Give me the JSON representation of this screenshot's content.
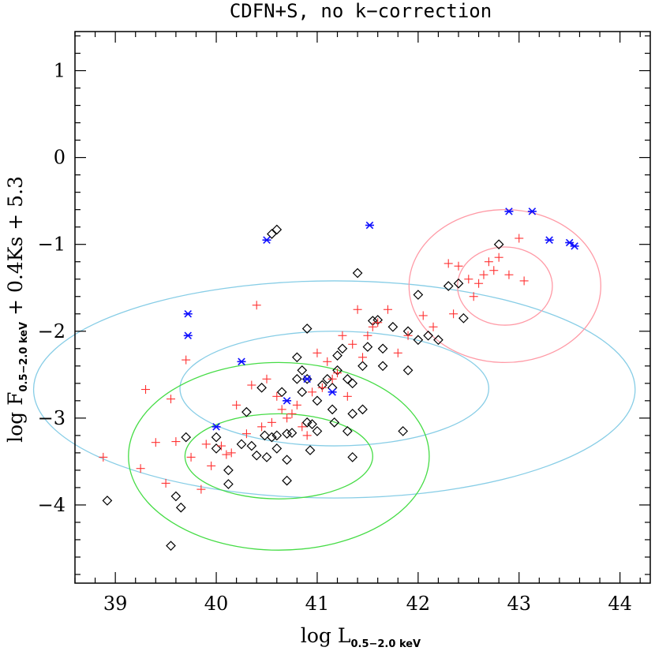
{
  "chart_data": {
    "type": "scatter",
    "title": "CDFN+S, no k−correction",
    "xlabel": {
      "main": "log L",
      "sub": "0.5−2.0 keV"
    },
    "ylabel": {
      "main": "log F",
      "sub": "0.5−2.0 keV",
      "tail": "+ 0.4Ks + 5.3"
    },
    "xlim": [
      38.6,
      44.3
    ],
    "ylim": [
      -4.9,
      1.45
    ],
    "xticks": [
      39,
      40,
      41,
      42,
      43,
      44
    ],
    "yticks": [
      -4,
      -3,
      -2,
      -1,
      0,
      1
    ],
    "ytick_labels": [
      "−4",
      "−3",
      "−2",
      "−1",
      "0",
      "1"
    ],
    "colors": {
      "plus": "#ff3030",
      "diamond": "#000000",
      "star": "#1010ff",
      "ellipse_blue": "#87cde6",
      "ellipse_green": "#46dc46",
      "ellipse_pink": "#ff9aa6"
    },
    "series": [
      {
        "name": "black-diamonds",
        "marker": "diamond",
        "color": "#000000",
        "points": [
          [
            38.92,
            -3.95
          ],
          [
            39.55,
            -4.47
          ],
          [
            39.6,
            -3.9
          ],
          [
            39.65,
            -4.03
          ],
          [
            39.7,
            -3.22
          ],
          [
            40.0,
            -3.22
          ],
          [
            40.0,
            -3.35
          ],
          [
            40.12,
            -3.6
          ],
          [
            40.12,
            -3.76
          ],
          [
            40.25,
            -3.3
          ],
          [
            40.3,
            -2.93
          ],
          [
            40.35,
            -3.32
          ],
          [
            40.4,
            -3.43
          ],
          [
            40.45,
            -2.65
          ],
          [
            40.48,
            -3.2
          ],
          [
            40.5,
            -3.45
          ],
          [
            40.55,
            -3.22
          ],
          [
            40.55,
            -0.88
          ],
          [
            40.6,
            -0.83
          ],
          [
            40.6,
            -3.2
          ],
          [
            40.6,
            -3.35
          ],
          [
            40.65,
            -2.7
          ],
          [
            40.7,
            -3.18
          ],
          [
            40.7,
            -3.48
          ],
          [
            40.7,
            -3.72
          ],
          [
            40.75,
            -3.17
          ],
          [
            40.8,
            -2.55
          ],
          [
            40.8,
            -2.3
          ],
          [
            40.85,
            -2.45
          ],
          [
            40.85,
            -2.7
          ],
          [
            40.9,
            -1.97
          ],
          [
            40.9,
            -2.55
          ],
          [
            40.9,
            -3.05
          ],
          [
            40.93,
            -3.37
          ],
          [
            40.95,
            -3.07
          ],
          [
            41.0,
            -2.8
          ],
          [
            41.0,
            -3.15
          ],
          [
            41.05,
            -2.62
          ],
          [
            41.1,
            -2.55
          ],
          [
            41.15,
            -2.65
          ],
          [
            41.15,
            -2.9
          ],
          [
            41.17,
            -3.05
          ],
          [
            41.2,
            -2.28
          ],
          [
            41.2,
            -2.45
          ],
          [
            41.25,
            -2.2
          ],
          [
            41.3,
            -2.55
          ],
          [
            41.3,
            -3.15
          ],
          [
            41.35,
            -2.6
          ],
          [
            41.35,
            -2.95
          ],
          [
            41.35,
            -3.45
          ],
          [
            41.4,
            -1.33
          ],
          [
            41.45,
            -2.4
          ],
          [
            41.45,
            -2.9
          ],
          [
            41.5,
            -2.18
          ],
          [
            41.55,
            -1.88
          ],
          [
            41.6,
            -1.87
          ],
          [
            41.65,
            -2.2
          ],
          [
            41.65,
            -2.4
          ],
          [
            41.75,
            -1.95
          ],
          [
            41.85,
            -3.15
          ],
          [
            41.9,
            -2.45
          ],
          [
            41.9,
            -2.0
          ],
          [
            42.0,
            -1.58
          ],
          [
            42.0,
            -2.1
          ],
          [
            42.1,
            -2.05
          ],
          [
            42.2,
            -2.1
          ],
          [
            42.3,
            -1.48
          ],
          [
            42.4,
            -1.45
          ],
          [
            42.45,
            -1.85
          ],
          [
            42.8,
            -1.0
          ]
        ]
      },
      {
        "name": "red-plus",
        "marker": "plus",
        "color": "#ff3030",
        "points": [
          [
            38.88,
            -3.45
          ],
          [
            39.25,
            -3.58
          ],
          [
            39.3,
            -2.67
          ],
          [
            39.4,
            -3.28
          ],
          [
            39.5,
            -3.75
          ],
          [
            39.55,
            -2.78
          ],
          [
            39.6,
            -3.27
          ],
          [
            39.7,
            -2.33
          ],
          [
            39.75,
            -3.45
          ],
          [
            39.85,
            -3.82
          ],
          [
            39.9,
            -3.3
          ],
          [
            39.95,
            -3.55
          ],
          [
            40.05,
            -3.32
          ],
          [
            40.1,
            -3.42
          ],
          [
            40.15,
            -3.4
          ],
          [
            40.2,
            -2.85
          ],
          [
            40.3,
            -3.18
          ],
          [
            40.35,
            -2.62
          ],
          [
            40.4,
            -1.7
          ],
          [
            40.45,
            -3.1
          ],
          [
            40.5,
            -2.55
          ],
          [
            40.55,
            -3.05
          ],
          [
            40.6,
            -2.75
          ],
          [
            40.65,
            -2.9
          ],
          [
            40.7,
            -3.0
          ],
          [
            40.75,
            -2.95
          ],
          [
            40.8,
            -2.85
          ],
          [
            40.85,
            -3.1
          ],
          [
            40.9,
            -3.2
          ],
          [
            40.95,
            -2.7
          ],
          [
            41.0,
            -2.25
          ],
          [
            41.05,
            -2.65
          ],
          [
            41.1,
            -2.35
          ],
          [
            41.15,
            -2.55
          ],
          [
            41.2,
            -2.48
          ],
          [
            41.25,
            -2.05
          ],
          [
            41.3,
            -2.75
          ],
          [
            41.35,
            -2.15
          ],
          [
            41.4,
            -1.75
          ],
          [
            41.45,
            -2.3
          ],
          [
            41.5,
            -2.05
          ],
          [
            41.55,
            -1.95
          ],
          [
            41.6,
            -1.9
          ],
          [
            41.7,
            -1.75
          ],
          [
            41.8,
            -2.25
          ],
          [
            41.9,
            -2.05
          ],
          [
            42.05,
            -1.82
          ],
          [
            42.15,
            -1.95
          ],
          [
            42.3,
            -1.22
          ],
          [
            42.35,
            -1.8
          ],
          [
            42.4,
            -1.25
          ],
          [
            42.5,
            -1.4
          ],
          [
            42.55,
            -1.6
          ],
          [
            42.6,
            -1.45
          ],
          [
            42.65,
            -1.35
          ],
          [
            42.7,
            -1.2
          ],
          [
            42.75,
            -1.3
          ],
          [
            42.8,
            -1.15
          ],
          [
            42.9,
            -1.35
          ],
          [
            43.0,
            -0.93
          ],
          [
            43.05,
            -1.42
          ]
        ]
      },
      {
        "name": "blue-stars",
        "marker": "star",
        "color": "#1010ff",
        "points": [
          [
            39.72,
            -1.8
          ],
          [
            39.72,
            -2.05
          ],
          [
            40.0,
            -3.1
          ],
          [
            40.25,
            -2.35
          ],
          [
            40.5,
            -0.95
          ],
          [
            40.7,
            -2.8
          ],
          [
            40.9,
            -2.55
          ],
          [
            41.15,
            -2.7
          ],
          [
            41.52,
            -0.78
          ],
          [
            42.9,
            -0.62
          ],
          [
            43.13,
            -0.62
          ],
          [
            43.3,
            -0.95
          ],
          [
            43.5,
            -0.98
          ],
          [
            43.55,
            -1.02
          ]
        ]
      }
    ],
    "ellipses": [
      {
        "name": "blue-outer",
        "color": "#87cde6",
        "cx": 41.17,
        "cy": -2.67,
        "rx": 2.98,
        "ry": 1.25
      },
      {
        "name": "blue-inner",
        "color": "#87cde6",
        "cx": 41.17,
        "cy": -2.66,
        "rx": 1.53,
        "ry": 0.66
      },
      {
        "name": "green-outer",
        "color": "#46dc46",
        "cx": 40.62,
        "cy": -3.44,
        "rx": 1.49,
        "ry": 1.08
      },
      {
        "name": "green-inner",
        "color": "#46dc46",
        "cx": 40.62,
        "cy": -3.44,
        "rx": 0.93,
        "ry": 0.49
      },
      {
        "name": "pink-outer",
        "color": "#ff9aa6",
        "cx": 42.86,
        "cy": -1.48,
        "rx": 0.95,
        "ry": 0.88
      },
      {
        "name": "pink-inner",
        "color": "#ff9aa6",
        "cx": 42.86,
        "cy": -1.48,
        "rx": 0.47,
        "ry": 0.45
      }
    ]
  }
}
